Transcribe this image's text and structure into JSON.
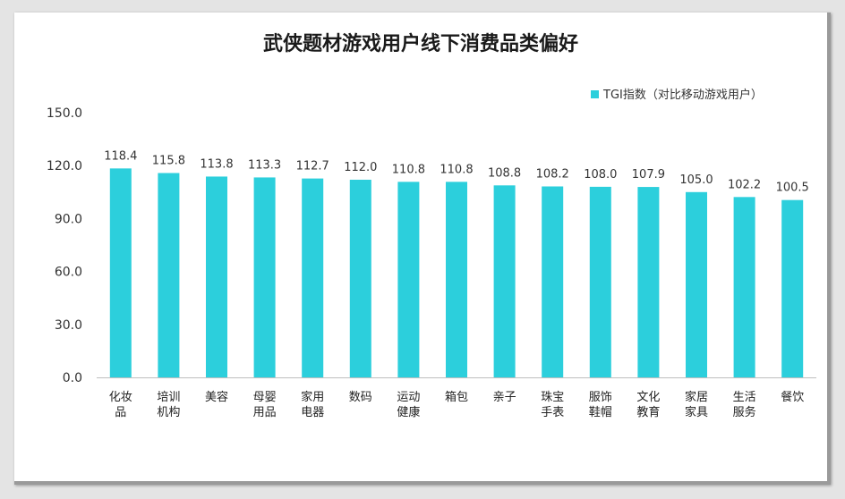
{
  "chart_data": {
    "type": "bar",
    "title": "武侠题材游戏用户线下消费品类偏好",
    "legend": "TGI指数（对比移动游戏用户）",
    "legend_position": "top-right",
    "series": [
      {
        "name": "TGI指数（对比移动游戏用户）",
        "values": [
          118.4,
          115.8,
          113.8,
          113.3,
          112.7,
          112.0,
          110.8,
          110.8,
          108.8,
          108.2,
          108.0,
          107.9,
          105.0,
          102.2,
          100.5
        ],
        "labels": [
          "118.4",
          "115.8",
          "113.8",
          "113.3",
          "112.7",
          "112.0",
          "110.8",
          "110.8",
          "108.8",
          "108.2",
          "108.0",
          "107.9",
          "105.0",
          "102.2",
          "100.5"
        ]
      }
    ],
    "categories": [
      "化妆品",
      "培训机构",
      "美容",
      "母婴用品",
      "家用电器",
      "数码",
      "运动健康",
      "箱包",
      "亲子",
      "珠宝手表",
      "服饰鞋帽",
      "文化教育",
      "家居家具",
      "生活服务",
      "餐饮"
    ],
    "ylim": [
      0,
      150
    ],
    "yticks": [
      "0.0",
      "30.0",
      "60.0",
      "90.0",
      "120.0",
      "150.0"
    ],
    "grid": false,
    "colors": {
      "bar": "#2ccfdc",
      "axis": "#bfbfbf"
    }
  }
}
